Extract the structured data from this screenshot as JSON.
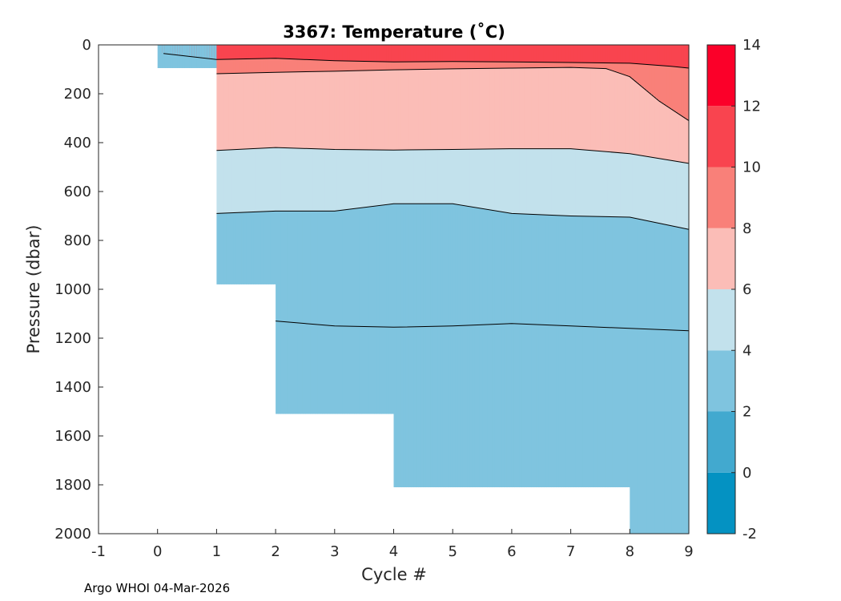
{
  "chart_data": {
    "type": "heatmap",
    "title": "3367:  Temperature (˚C)",
    "xlabel": "Cycle #",
    "ylabel": "Pressure (dbar)",
    "xlim": [
      -1,
      9
    ],
    "ylim": [
      0,
      2000
    ],
    "y_reversed": true,
    "xticks": [
      -1,
      0,
      1,
      2,
      3,
      4,
      5,
      6,
      7,
      8,
      9
    ],
    "yticks": [
      0,
      200,
      400,
      600,
      800,
      1000,
      1200,
      1400,
      1600,
      1800,
      2000
    ],
    "colorbar": {
      "range": [
        -2,
        14
      ],
      "ticks": [
        -2,
        0,
        2,
        4,
        6,
        8,
        10,
        12,
        14
      ],
      "bands": [
        {
          "from": -2,
          "to": 0,
          "color": "#0492c2"
        },
        {
          "from": 0,
          "to": 2,
          "color": "#42a9cf"
        },
        {
          "from": 2,
          "to": 4,
          "color": "#7fc4df"
        },
        {
          "from": 4,
          "to": 6,
          "color": "#c2e1ec"
        },
        {
          "from": 6,
          "to": 8,
          "color": "#fbbdb7"
        },
        {
          "from": 8,
          "to": 10,
          "color": "#f98079"
        },
        {
          "from": 10,
          "to": 12,
          "color": "#f9444f"
        },
        {
          "from": 12,
          "to": 14,
          "color": "#fb0029"
        }
      ]
    },
    "profile_max_pressure": [
      {
        "cycle": 0,
        "max_pressure": 95
      },
      {
        "cycle": 1,
        "max_pressure": 980
      },
      {
        "cycle": 2,
        "max_pressure": 1510
      },
      {
        "cycle": 3,
        "max_pressure": 1510
      },
      {
        "cycle": 4,
        "max_pressure": 1810
      },
      {
        "cycle": 5,
        "max_pressure": 1810
      },
      {
        "cycle": 6,
        "max_pressure": 1810
      },
      {
        "cycle": 7,
        "max_pressure": 1810
      },
      {
        "cycle": 8,
        "max_pressure": 2000
      },
      {
        "cycle": 9,
        "max_pressure": 2000
      }
    ],
    "isotherms": [
      {
        "temp": 10,
        "x": [
          0.1,
          1,
          2,
          3,
          4,
          5,
          6,
          7,
          8,
          8.7,
          9
        ],
        "pressure": [
          35,
          60,
          55,
          65,
          70,
          68,
          70,
          72,
          75,
          88,
          95
        ]
      },
      {
        "temp": 8,
        "x": [
          1,
          2,
          3,
          4,
          5,
          6,
          7,
          7.6,
          8,
          8.5,
          9
        ],
        "pressure": [
          118,
          112,
          108,
          102,
          98,
          95,
          92,
          97,
          130,
          230,
          310
        ]
      },
      {
        "temp": 6,
        "x": [
          1,
          2,
          3,
          4,
          5,
          6,
          7,
          8,
          9
        ],
        "pressure": [
          432,
          420,
          428,
          430,
          428,
          425,
          425,
          445,
          485
        ]
      },
      {
        "temp": 4,
        "x": [
          1,
          2,
          3,
          4,
          5,
          6,
          7,
          8,
          9
        ],
        "pressure": [
          690,
          680,
          680,
          650,
          650,
          690,
          700,
          705,
          755
        ]
      },
      {
        "temp": 3.5,
        "x": [
          2,
          3,
          4,
          5,
          6,
          7,
          8,
          9
        ],
        "pressure": [
          1130,
          1150,
          1155,
          1150,
          1140,
          1150,
          1160,
          1170
        ]
      }
    ],
    "isotherm_colors": [
      {
        "temp": 10,
        "above": "#f9444f",
        "below": "#f98079"
      },
      {
        "temp": 8,
        "above": "#f98079",
        "below": "#fbbdb7"
      },
      {
        "temp": 6,
        "above": "#fbbdb7",
        "below": "#c2e1ec"
      },
      {
        "temp": 4,
        "above": "#c2e1ec",
        "below": "#7fc4df"
      }
    ]
  },
  "footer": "Argo WHOI 04-Mar-2026"
}
